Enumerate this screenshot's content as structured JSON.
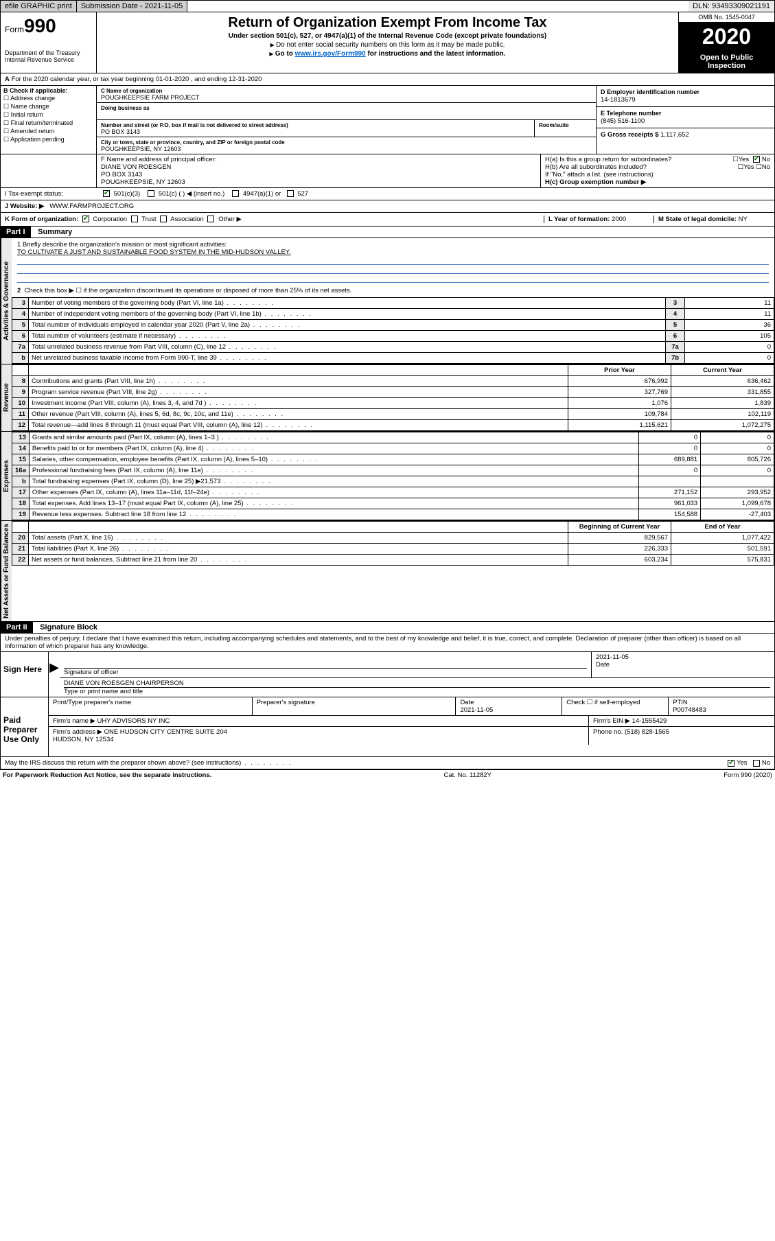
{
  "topbar": {
    "efile": "efile GRAPHIC print",
    "subdate_lbl": "Submission Date - 2021-11-05",
    "dln": "DLN: 93493309021191"
  },
  "header": {
    "form_prefix": "Form",
    "form_num": "990",
    "dept": "Department of the Treasury\nInternal Revenue Service",
    "title": "Return of Organization Exempt From Income Tax",
    "sub": "Under section 501(c), 527, or 4947(a)(1) of the Internal Revenue Code (except private foundations)",
    "instr1": "Do not enter social security numbers on this form as it may be made public.",
    "instr2_pre": "Go to ",
    "instr2_link": "www.irs.gov/Form990",
    "instr2_post": " for instructions and the latest information.",
    "omb": "OMB No. 1545-0047",
    "year": "2020",
    "openpub": "Open to Public Inspection"
  },
  "line_a": "For the 2020 calendar year, or tax year beginning 01-01-2020   , and ending 12-31-2020",
  "box_b": {
    "title": "B Check if applicable:",
    "opts": [
      "Address change",
      "Name change",
      "Initial return",
      "Final return/terminated",
      "Amended return",
      "Application pending"
    ]
  },
  "box_c": {
    "name_lbl": "C Name of organization",
    "name": "POUGHKEEPSIE FARM PROJECT",
    "dba_lbl": "Doing business as",
    "street_lbl": "Number and street (or P.O. box if mail is not delivered to street address)",
    "room_lbl": "Room/suite",
    "street": "PO BOX 3143",
    "city_lbl": "City or town, state or province, country, and ZIP or foreign postal code",
    "city": "POUGHKEEPSIE, NY  12603"
  },
  "box_d": {
    "lbl": "D Employer identification number",
    "val": "14-1813679"
  },
  "box_e": {
    "lbl": "E Telephone number",
    "val": "(845) 516-1100"
  },
  "box_g": {
    "lbl": "G Gross receipts $",
    "val": "1,117,652"
  },
  "box_f": {
    "lbl": "F  Name and address of principal officer:",
    "name": "DIANE VON ROESGEN",
    "addr1": "PO BOX 3143",
    "addr2": "POUGHKEEPSIE, NY  12603"
  },
  "box_h": {
    "ha": "H(a)  Is this a group return for subordinates?",
    "hb": "H(b)  Are all subordinates included?",
    "hb_note": "If \"No,\" attach a list. (see instructions)",
    "hc": "H(c)  Group exemption number ▶"
  },
  "box_i": {
    "lbl": "I   Tax-exempt status:",
    "c3": "501(c)(3)",
    "c": "501(c) (  ) ◀ (insert no.)",
    "a1": "4947(a)(1) or",
    "s527": "527"
  },
  "box_j": {
    "lbl": "J    Website: ▶",
    "val": "WWW.FARMPROJECT.ORG"
  },
  "box_k": {
    "lbl": "K Form of organization:",
    "opts": [
      "Corporation",
      "Trust",
      "Association",
      "Other ▶"
    ]
  },
  "box_l": {
    "lbl": "L Year of formation:",
    "val": "2000"
  },
  "box_m": {
    "lbl": "M State of legal domicile:",
    "val": "NY"
  },
  "part1": {
    "hdr": "Part I",
    "title": "Summary",
    "q1": "1   Briefly describe the organization's mission or most significant activities:",
    "mission": "TO CULTIVATE A JUST AND SUSTAINABLE FOOD SYSTEM IN THE MID-HUDSON VALLEY.",
    "q2": "Check this box ▶ ☐  if the organization discontinued its operations or disposed of more than 25% of its net assets.",
    "sidebars": {
      "ag": "Activities & Governance",
      "rev": "Revenue",
      "exp": "Expenses",
      "nab": "Net Assets or Fund Balances"
    },
    "gov_rows": [
      {
        "n": "3",
        "t": "Number of voting members of the governing body (Part VI, line 1a)",
        "r": "3",
        "v": "11"
      },
      {
        "n": "4",
        "t": "Number of independent voting members of the governing body (Part VI, line 1b)",
        "r": "4",
        "v": "11"
      },
      {
        "n": "5",
        "t": "Total number of individuals employed in calendar year 2020 (Part V, line 2a)",
        "r": "5",
        "v": "36"
      },
      {
        "n": "6",
        "t": "Total number of volunteers (estimate if necessary)",
        "r": "6",
        "v": "105"
      },
      {
        "n": "7a",
        "t": "Total unrelated business revenue from Part VIII, column (C), line 12",
        "r": "7a",
        "v": "0"
      },
      {
        "n": "b",
        "t": "Net unrelated business taxable income from Form 990-T, line 39",
        "r": "7b",
        "v": "0"
      }
    ],
    "col_hdrs": {
      "prior": "Prior Year",
      "current": "Current Year",
      "boy": "Beginning of Current Year",
      "eoy": "End of Year"
    },
    "rev_rows": [
      {
        "n": "8",
        "t": "Contributions and grants (Part VIII, line 1h)",
        "p": "676,992",
        "c": "636,462"
      },
      {
        "n": "9",
        "t": "Program service revenue (Part VIII, line 2g)",
        "p": "327,769",
        "c": "331,855"
      },
      {
        "n": "10",
        "t": "Investment income (Part VIII, column (A), lines 3, 4, and 7d )",
        "p": "1,076",
        "c": "1,839"
      },
      {
        "n": "11",
        "t": "Other revenue (Part VIII, column (A), lines 5, 6d, 8c, 9c, 10c, and 11e)",
        "p": "109,784",
        "c": "102,119"
      },
      {
        "n": "12",
        "t": "Total revenue—add lines 8 through 11 (must equal Part VIII, column (A), line 12)",
        "p": "1,115,621",
        "c": "1,072,275"
      }
    ],
    "exp_rows": [
      {
        "n": "13",
        "t": "Grants and similar amounts paid (Part IX, column (A), lines 1–3 )",
        "p": "0",
        "c": "0"
      },
      {
        "n": "14",
        "t": "Benefits paid to or for members (Part IX, column (A), line 4)",
        "p": "0",
        "c": "0"
      },
      {
        "n": "15",
        "t": "Salaries, other compensation, employee benefits (Part IX, column (A), lines 5–10)",
        "p": "689,881",
        "c": "805,726"
      },
      {
        "n": "16a",
        "t": "Professional fundraising fees (Part IX, column (A), line 11e)",
        "p": "0",
        "c": "0"
      },
      {
        "n": "b",
        "t": "Total fundraising expenses (Part IX, column (D), line 25) ▶21,573",
        "p": "",
        "c": ""
      },
      {
        "n": "17",
        "t": "Other expenses (Part IX, column (A), lines 11a–11d, 11f–24e)",
        "p": "271,152",
        "c": "293,952"
      },
      {
        "n": "18",
        "t": "Total expenses. Add lines 13–17 (must equal Part IX, column (A), line 25)",
        "p": "961,033",
        "c": "1,099,678"
      },
      {
        "n": "19",
        "t": "Revenue less expenses. Subtract line 18 from line 12",
        "p": "154,588",
        "c": "-27,403"
      }
    ],
    "nab_rows": [
      {
        "n": "20",
        "t": "Total assets (Part X, line 16)",
        "p": "829,567",
        "c": "1,077,422"
      },
      {
        "n": "21",
        "t": "Total liabilities (Part X, line 26)",
        "p": "226,333",
        "c": "501,591"
      },
      {
        "n": "22",
        "t": "Net assets or fund balances. Subtract line 21 from line 20",
        "p": "603,234",
        "c": "575,831"
      }
    ]
  },
  "part2": {
    "hdr": "Part II",
    "title": "Signature Block",
    "penalties": "Under penalties of perjury, I declare that I have examined this return, including accompanying schedules and statements, and to the best of my knowledge and belief, it is true, correct, and complete. Declaration of preparer (other than officer) is based on all information of which preparer has any knowledge.",
    "sign_here": "Sign Here",
    "sig_officer": "Signature of officer",
    "sig_date_lbl": "Date",
    "sig_date": "2021-11-05",
    "officer_name": "DIANE VON ROESGEN  CHAIRPERSON",
    "officer_type": "Type or print name and title",
    "paid_prep": "Paid Preparer Use Only",
    "prep_name_lbl": "Print/Type preparer's name",
    "prep_sig_lbl": "Preparer's signature",
    "prep_date_lbl": "Date",
    "prep_date": "2021-11-05",
    "self_emp": "Check ☐ if self-employed",
    "ptin_lbl": "PTIN",
    "ptin": "P00748483",
    "firm_name_lbl": "Firm's name   ▶",
    "firm_name": "UHY ADVISORS NY INC",
    "firm_ein_lbl": "Firm's EIN ▶",
    "firm_ein": "14-1555429",
    "firm_addr_lbl": "Firm's address ▶",
    "firm_addr": "ONE HUDSON CITY CENTRE SUITE 204\nHUDSON, NY  12534",
    "phone_lbl": "Phone no.",
    "phone": "(518) 828-1565",
    "discuss": "May the IRS discuss this return with the preparer shown above? (see instructions)"
  },
  "footer": {
    "paperwork": "For Paperwork Reduction Act Notice, see the separate instructions.",
    "cat": "Cat. No. 11282Y",
    "form": "Form 990 (2020)"
  },
  "colors": {
    "link": "#0066cc",
    "check_green": "#0a7a0a",
    "bg_grey": "#eaeaea"
  }
}
